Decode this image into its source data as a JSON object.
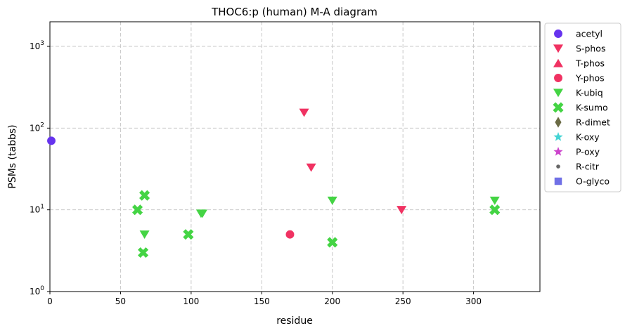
{
  "chart_data": {
    "type": "scatter",
    "title": "THOC6:p (human) M-A diagram",
    "xlabel": "residue",
    "ylabel": "PSMs (tabbs)",
    "xlim": [
      0,
      347
    ],
    "ylim": [
      1,
      2000
    ],
    "yscale": "log",
    "x_ticks": [
      0,
      50,
      100,
      150,
      200,
      250,
      300
    ],
    "y_ticks": [
      {
        "value": 1,
        "base": "10",
        "exp": "0"
      },
      {
        "value": 10,
        "base": "10",
        "exp": "1"
      },
      {
        "value": 100,
        "base": "10",
        "exp": "2"
      },
      {
        "value": 1000,
        "base": "10",
        "exp": "3"
      }
    ],
    "grid": true,
    "legend_position": "outside-right",
    "series": [
      {
        "name": "acetyl",
        "marker": "circle",
        "color": "#6633ee",
        "points": [
          {
            "x": 1,
            "y": 70
          }
        ]
      },
      {
        "name": "S-phos",
        "marker": "triangle-down",
        "color": "#f03262",
        "points": [
          {
            "x": 180,
            "y": 155
          },
          {
            "x": 185,
            "y": 33
          },
          {
            "x": 249,
            "y": 10
          }
        ]
      },
      {
        "name": "T-phos",
        "marker": "triangle-up",
        "color": "#f03262",
        "points": []
      },
      {
        "name": "Y-phos",
        "marker": "circle",
        "color": "#f03262",
        "points": [
          {
            "x": 170,
            "y": 5
          }
        ]
      },
      {
        "name": "K-ubiq",
        "marker": "triangle-down",
        "color": "#44d444",
        "points": [
          {
            "x": 67,
            "y": 5
          },
          {
            "x": 107,
            "y": 9
          },
          {
            "x": 108,
            "y": 9
          },
          {
            "x": 200,
            "y": 13
          },
          {
            "x": 315,
            "y": 13
          }
        ]
      },
      {
        "name": "K-sumo",
        "marker": "x-cross",
        "color": "#44d444",
        "points": [
          {
            "x": 62,
            "y": 10
          },
          {
            "x": 67,
            "y": 15
          },
          {
            "x": 66,
            "y": 3
          },
          {
            "x": 98,
            "y": 5
          },
          {
            "x": 200,
            "y": 4
          },
          {
            "x": 315,
            "y": 10
          }
        ]
      },
      {
        "name": "R-dimet",
        "marker": "diamond",
        "color": "#6b6b45",
        "points": []
      },
      {
        "name": "K-oxy",
        "marker": "star",
        "color": "#44d4d4",
        "points": []
      },
      {
        "name": "P-oxy",
        "marker": "star",
        "color": "#cc44cc",
        "points": []
      },
      {
        "name": "R-citr",
        "marker": "small-dot",
        "color": "#666666",
        "points": []
      },
      {
        "name": "O-glyco",
        "marker": "square",
        "color": "#7070e6",
        "points": []
      }
    ]
  }
}
